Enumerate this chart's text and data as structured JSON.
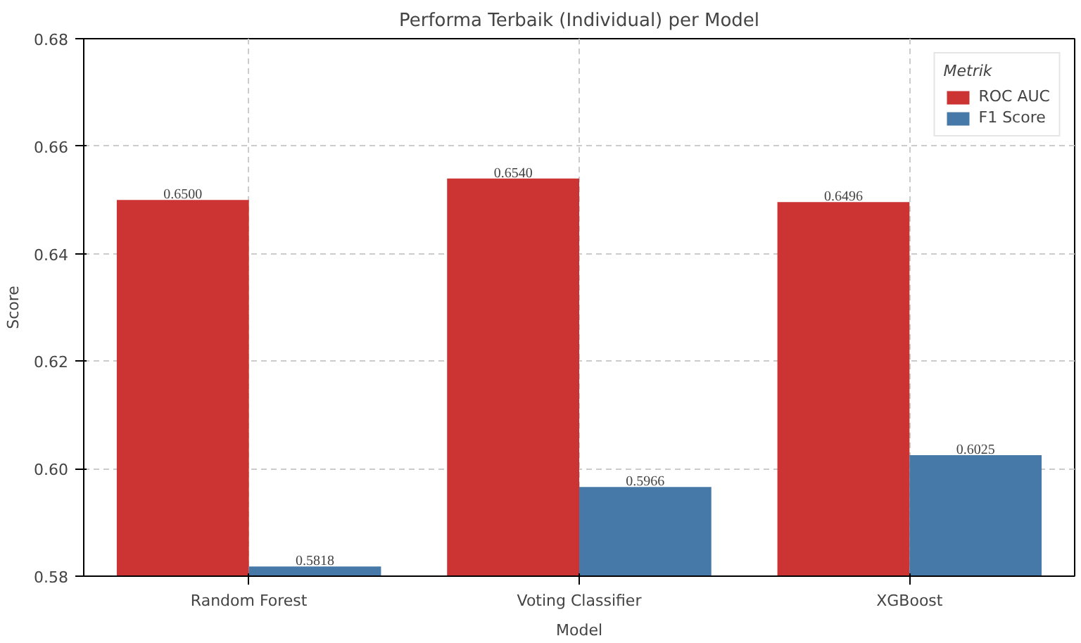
{
  "chart_data": {
    "type": "bar",
    "title": "Performa Terbaik (Individual) per Model",
    "xlabel": "Model",
    "ylabel": "Score",
    "legend_title": "Metrik",
    "categories": [
      "Random Forest",
      "Voting Classifier",
      "XGBoost"
    ],
    "series": [
      {
        "name": "ROC AUC",
        "color": "#cc3333",
        "values": [
          0.65,
          0.654,
          0.6496
        ],
        "value_labels": [
          "0.6500",
          "0.6540",
          "0.6496"
        ]
      },
      {
        "name": "F1 Score",
        "color": "#4679a8",
        "values": [
          0.5818,
          0.5966,
          0.6025
        ],
        "value_labels": [
          "0.5818",
          "0.5966",
          "0.6025"
        ]
      }
    ],
    "ylim": [
      0.58,
      0.68
    ],
    "yticks": [
      {
        "value": 0.58,
        "label": "0.58"
      },
      {
        "value": 0.6,
        "label": "0.60"
      },
      {
        "value": 0.62,
        "label": "0.62"
      },
      {
        "value": 0.64,
        "label": "0.64"
      },
      {
        "value": 0.66,
        "label": "0.66"
      },
      {
        "value": 0.68,
        "label": "0.68"
      }
    ],
    "grid": true,
    "legend": "top right"
  }
}
